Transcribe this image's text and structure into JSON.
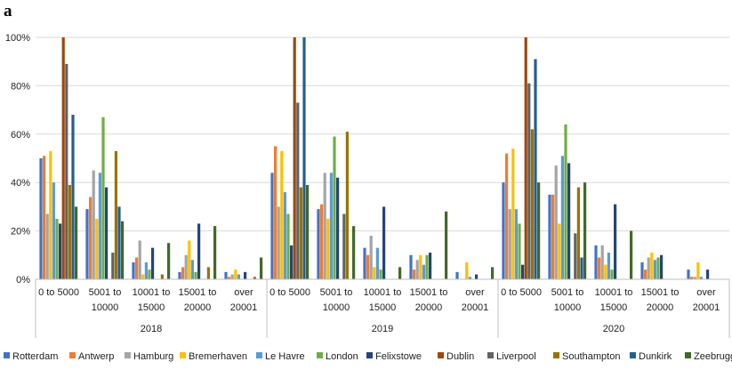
{
  "panel_label": "a",
  "chart_data": {
    "type": "bar",
    "grid": true,
    "legend_position": "bottom",
    "ylim": [
      0,
      100
    ],
    "y_ticks": [
      "0%",
      "20%",
      "40%",
      "60%",
      "80%",
      "100%"
    ],
    "y_tick_values": [
      0,
      20,
      40,
      60,
      80,
      100
    ],
    "years": [
      "2018",
      "2019",
      "2020"
    ],
    "categories": [
      [
        "0 to 5000"
      ],
      [
        "5001 to",
        "10000"
      ],
      [
        "10001 to",
        "15000"
      ],
      [
        "15001 to",
        "20000"
      ],
      [
        "over",
        "20001"
      ]
    ],
    "series": [
      {
        "name": "Rotterdam",
        "color": "#4472C4",
        "values": [
          [
            50,
            29,
            7,
            3,
            3
          ],
          [
            44,
            29,
            13,
            10,
            3
          ],
          [
            40,
            35,
            14,
            7,
            4
          ]
        ]
      },
      {
        "name": "Antwerp",
        "color": "#ED7D31",
        "values": [
          [
            51,
            34,
            9,
            5,
            1
          ],
          [
            55,
            31,
            10,
            4,
            0
          ],
          [
            52,
            35,
            9,
            4,
            1
          ]
        ]
      },
      {
        "name": "Hamburg",
        "color": "#A5A5A5",
        "values": [
          [
            27,
            45,
            16,
            10,
            2
          ],
          [
            30,
            44,
            18,
            8,
            0
          ],
          [
            29,
            47,
            14,
            9,
            1
          ]
        ]
      },
      {
        "name": "Bremerhaven",
        "color": "#FFC000",
        "values": [
          [
            53,
            25,
            2,
            16,
            4
          ],
          [
            53,
            25,
            5,
            10,
            7
          ],
          [
            54,
            23,
            6,
            11,
            7
          ]
        ]
      },
      {
        "name": "Le Havre",
        "color": "#5B9BD5",
        "values": [
          [
            40,
            44,
            7,
            8,
            2
          ],
          [
            36,
            44,
            13,
            6,
            1
          ],
          [
            29,
            51,
            11,
            8,
            1
          ]
        ]
      },
      {
        "name": "London",
        "color": "#70AD47",
        "values": [
          [
            25,
            67,
            4,
            3,
            0
          ],
          [
            27,
            59,
            4,
            10,
            0
          ],
          [
            23,
            64,
            4,
            9,
            0
          ]
        ]
      },
      {
        "name": "Felixstowe",
        "color": "#264478",
        "values": [
          [
            23,
            38,
            13,
            23,
            3
          ],
          [
            14,
            42,
            30,
            11,
            2
          ],
          [
            6,
            48,
            31,
            10,
            4
          ]
        ]
      },
      {
        "name": "Dublin",
        "color": "#9E480E",
        "values": [
          [
            100,
            0,
            0,
            0,
            0
          ],
          [
            100,
            0,
            0,
            0,
            0
          ],
          [
            100,
            0,
            0,
            0,
            0
          ]
        ]
      },
      {
        "name": "Liverpool",
        "color": "#636363",
        "values": [
          [
            89,
            11,
            0,
            0,
            0
          ],
          [
            73,
            27,
            0,
            0,
            0
          ],
          [
            81,
            19,
            0,
            0,
            0
          ]
        ]
      },
      {
        "name": "Southampton",
        "color": "#997300",
        "values": [
          [
            39,
            53,
            2,
            5,
            1
          ],
          [
            38,
            61,
            0,
            0,
            0
          ],
          [
            62,
            38,
            0,
            0,
            0
          ]
        ]
      },
      {
        "name": "Dunkirk",
        "color": "#255E91",
        "values": [
          [
            68,
            30,
            0,
            0,
            0
          ],
          [
            100,
            0,
            0,
            0,
            0
          ],
          [
            91,
            9,
            0,
            0,
            0
          ]
        ]
      },
      {
        "name": "Zeebrugge",
        "color": "#43682B",
        "values": [
          [
            30,
            24,
            15,
            22,
            9
          ],
          [
            39,
            22,
            5,
            28,
            5
          ],
          [
            40,
            40,
            20,
            0,
            0
          ]
        ]
      }
    ]
  }
}
